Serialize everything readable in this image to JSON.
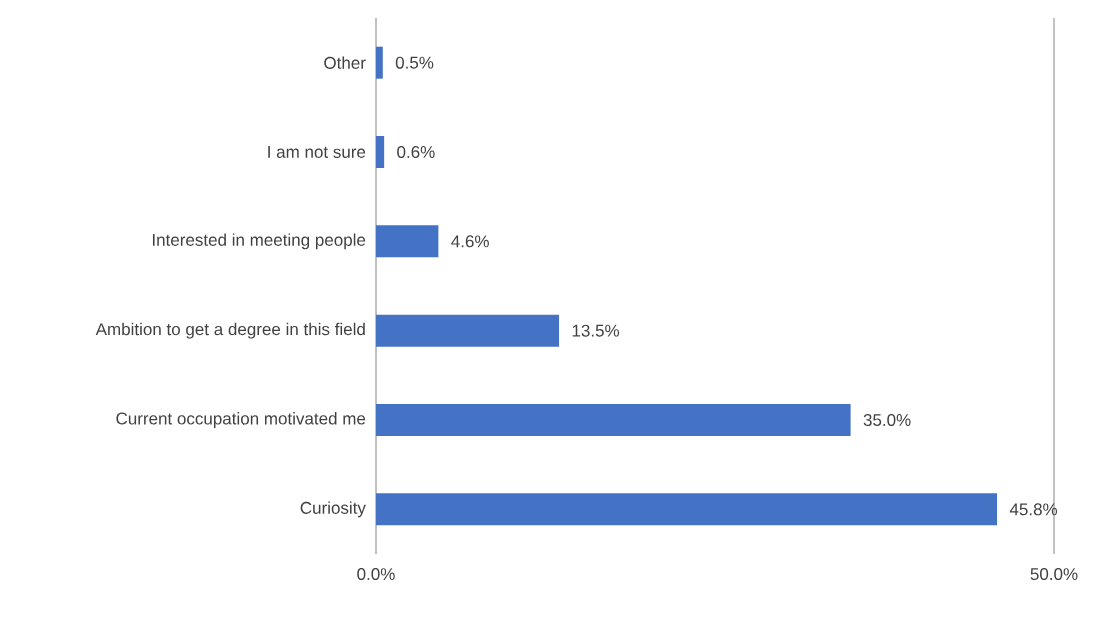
{
  "chart_data": {
    "type": "bar",
    "orientation": "horizontal",
    "categories": [
      "Other",
      "I am not sure",
      "Interested in meeting people",
      "Ambition to get a degree in this field",
      "Current occupation motivated me",
      "Curiosity"
    ],
    "values": [
      0.5,
      0.6,
      4.6,
      13.5,
      35.0,
      45.8
    ],
    "value_labels": [
      "0.5%",
      "0.6%",
      "4.6%",
      "13.5%",
      "35.0%",
      "45.8%"
    ],
    "color": "#4472c4",
    "xlim": [
      0,
      50
    ],
    "xticks": [
      {
        "value": 0,
        "label": "0.0%"
      },
      {
        "value": 50,
        "label": "50.0%"
      }
    ]
  }
}
